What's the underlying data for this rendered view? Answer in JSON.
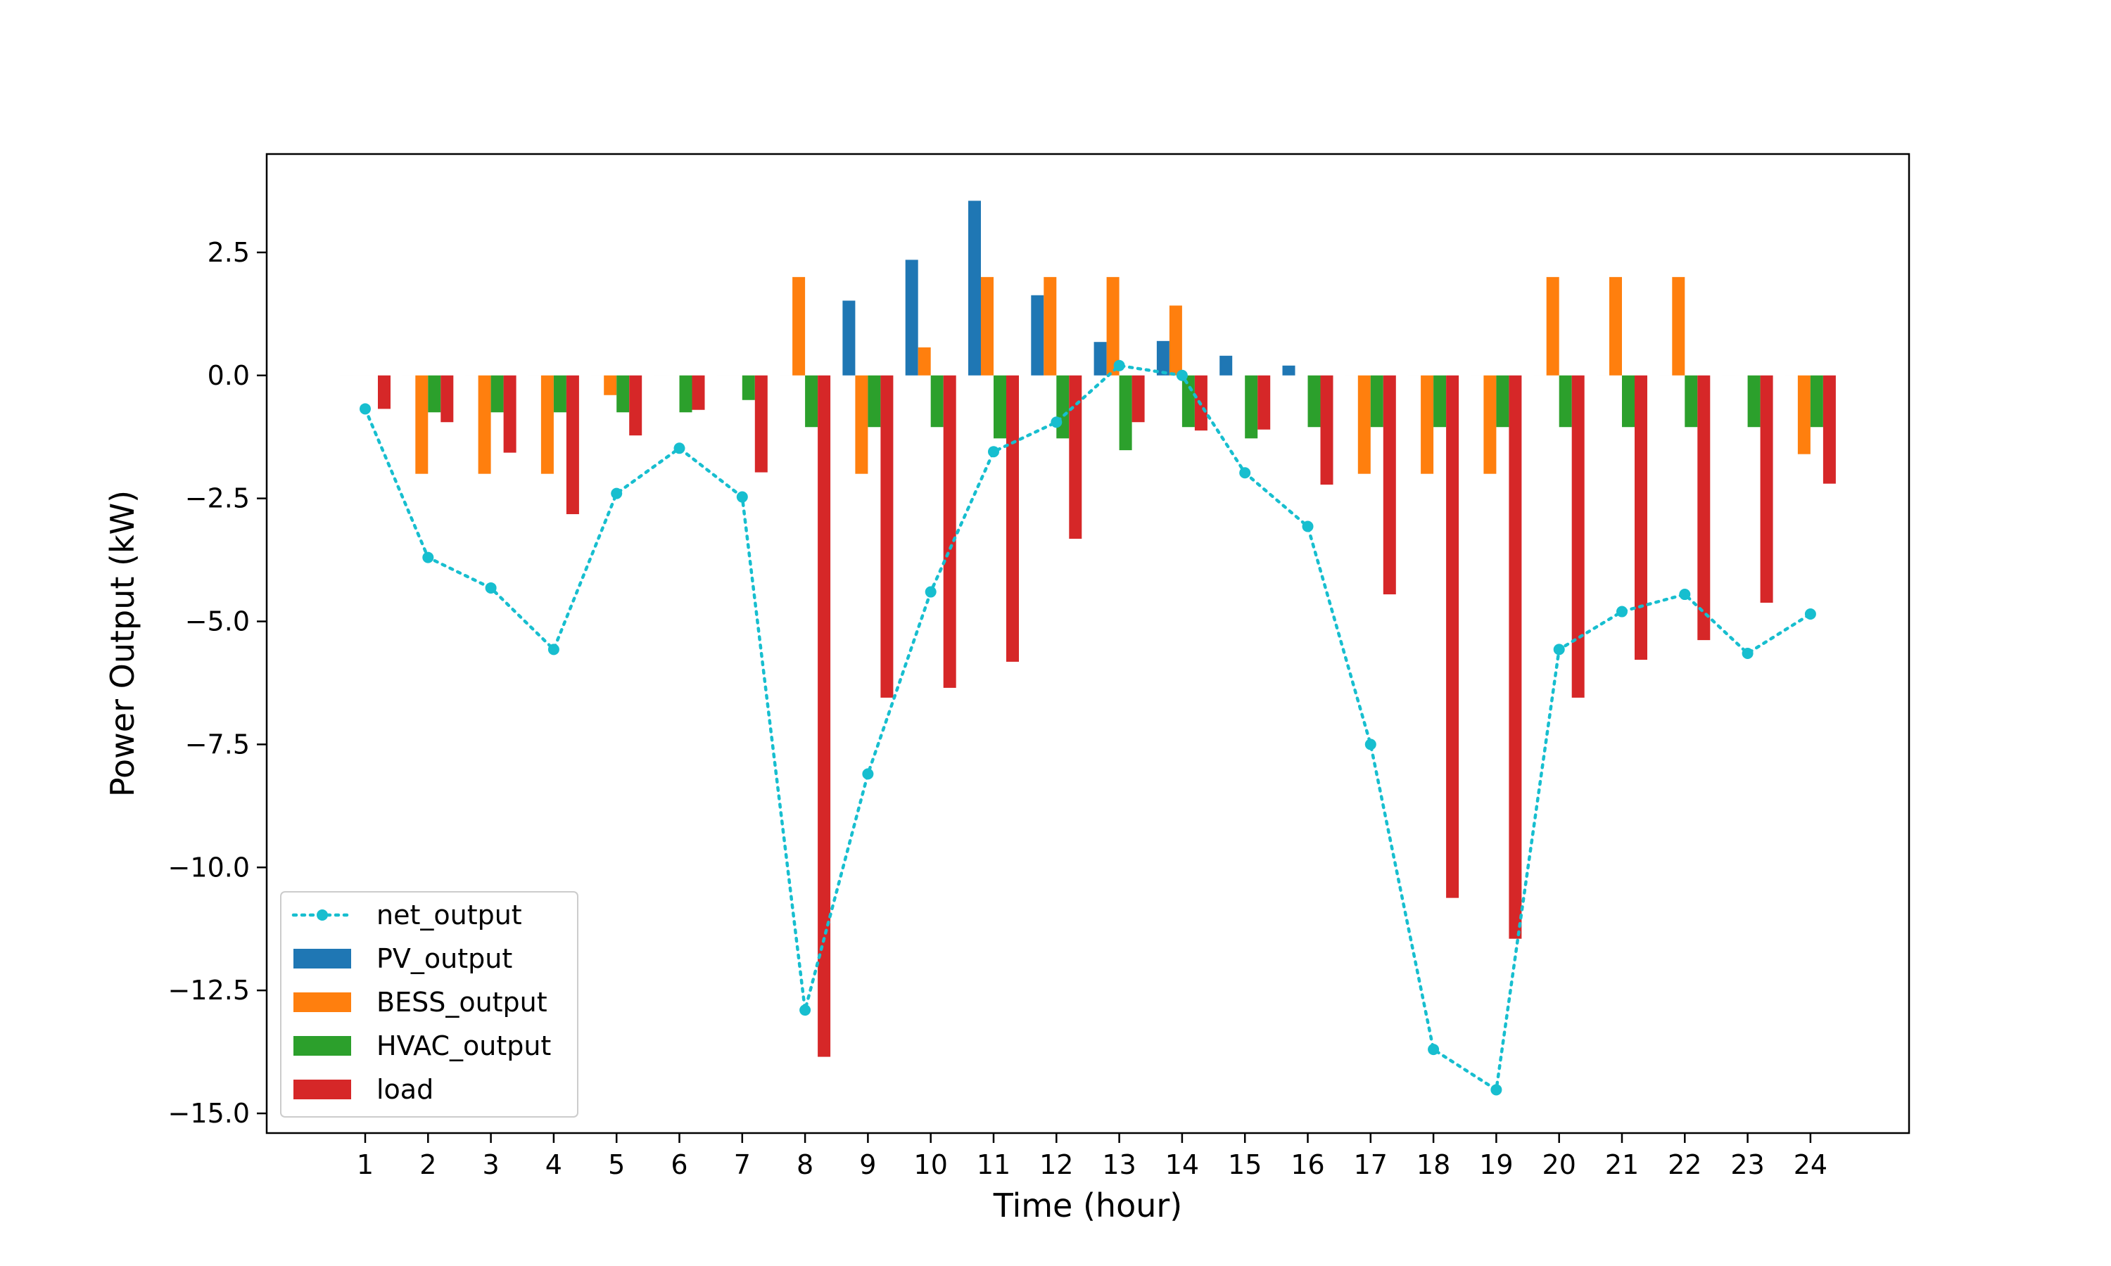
{
  "chart_data": {
    "type": "bar",
    "xlabel": "Time (hour)",
    "ylabel": "Power Output (kW)",
    "ylim": [
      -15.4,
      4.5
    ],
    "yticks": [
      2.5,
      0.0,
      -2.5,
      -5.0,
      -7.5,
      -10.0,
      -12.5,
      -15.0
    ],
    "ytick_labels": [
      "2.5",
      "0.0",
      "−2.5",
      "−5.0",
      "−7.5",
      "−10.0",
      "−12.5",
      "−15.0"
    ],
    "categories": [
      "1",
      "2",
      "3",
      "4",
      "5",
      "6",
      "7",
      "8",
      "9",
      "10",
      "11",
      "12",
      "13",
      "14",
      "15",
      "16",
      "17",
      "18",
      "19",
      "20",
      "21",
      "22",
      "23",
      "24"
    ],
    "grid": false,
    "legend_position": "lower-left",
    "series": [
      {
        "name": "PV_output",
        "kind": "bar",
        "color": "#1f77b4",
        "values": [
          0,
          0,
          0,
          0,
          0,
          0,
          0,
          0,
          1.52,
          2.35,
          3.55,
          1.63,
          0.68,
          0.7,
          0.4,
          0.2,
          0,
          0,
          0,
          0,
          0,
          0,
          0,
          0
        ]
      },
      {
        "name": "BESS_output",
        "kind": "bar",
        "color": "#ff7f0e",
        "values": [
          0,
          -2.0,
          -2.0,
          -2.0,
          -0.4,
          0,
          0,
          2.0,
          -2.0,
          0.57,
          2.0,
          2.0,
          2.0,
          1.42,
          0,
          0,
          -2.0,
          -2.0,
          -2.0,
          2.0,
          2.0,
          2.0,
          0,
          -1.6
        ]
      },
      {
        "name": "HVAC_output",
        "kind": "bar",
        "color": "#2ca02c",
        "values": [
          0,
          -0.75,
          -0.75,
          -0.75,
          -0.75,
          -0.75,
          -0.5,
          -1.05,
          -1.05,
          -1.05,
          -1.28,
          -1.28,
          -1.52,
          -1.05,
          -1.28,
          -1.05,
          -1.05,
          -1.05,
          -1.05,
          -1.05,
          -1.05,
          -1.05,
          -1.05,
          -1.05
        ]
      },
      {
        "name": "load",
        "kind": "bar",
        "color": "#d62728",
        "values": [
          -0.68,
          -0.95,
          -1.57,
          -2.82,
          -1.22,
          -0.7,
          -1.97,
          -13.85,
          -6.55,
          -6.35,
          -5.82,
          -3.32,
          -0.95,
          -1.12,
          -1.1,
          -2.22,
          -4.45,
          -10.62,
          -11.45,
          -6.55,
          -5.78,
          -5.38,
          -4.62,
          -2.2
        ]
      },
      {
        "name": "net_output",
        "kind": "line",
        "style": "dotted",
        "marker": "circle",
        "color": "#17becf",
        "values": [
          -0.68,
          -3.7,
          -4.32,
          -5.57,
          -2.4,
          -1.48,
          -2.47,
          -12.9,
          -8.1,
          -4.4,
          -1.55,
          -0.95,
          0.2,
          0.0,
          -1.98,
          -3.07,
          -7.5,
          -13.7,
          -14.52,
          -5.57,
          -4.8,
          -4.45,
          -5.65,
          -4.85
        ]
      }
    ]
  }
}
